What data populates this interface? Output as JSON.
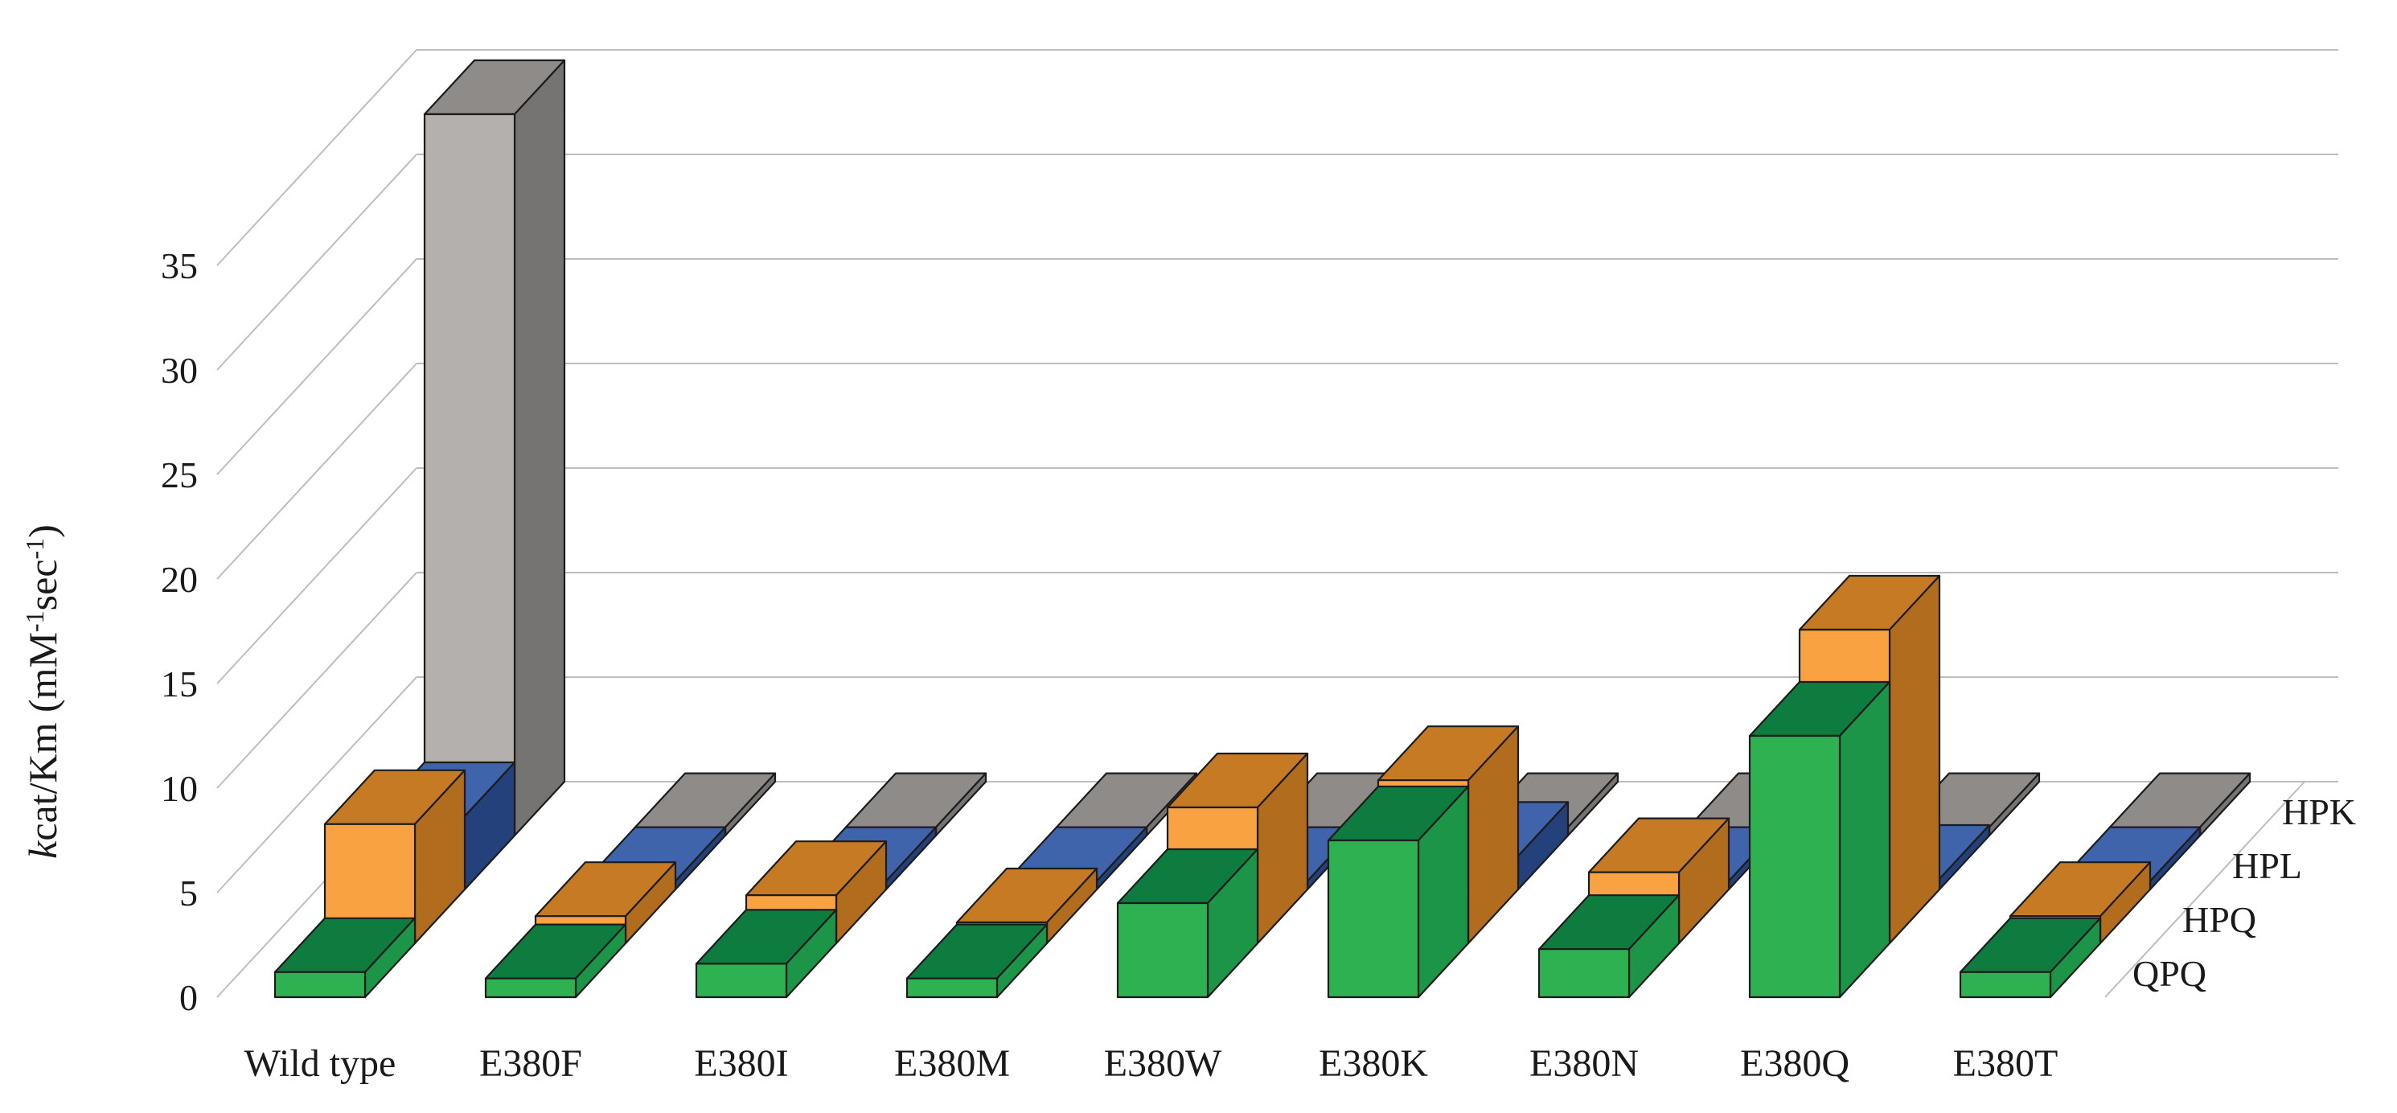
{
  "chart_data": {
    "type": "bar",
    "projection": "3d-oblique-depth-series",
    "title": "",
    "xlabel": "",
    "ylabel": "kcat/Km (mM-1sec-1)",
    "ylabel_parts": [
      {
        "text": "k",
        "italic": true
      },
      {
        "text": "cat/Km (mM"
      },
      {
        "text": "-1",
        "super": true
      },
      {
        "text": "sec"
      },
      {
        "text": "-1",
        "super": true
      },
      {
        "text": ")"
      }
    ],
    "categories": [
      "Wild type",
      "E380F",
      "E380I",
      "E380M",
      "E380W",
      "E380K",
      "E380N",
      "E380Q",
      "E380T"
    ],
    "series": [
      {
        "name": "QPQ",
        "depth_row": 0,
        "values": [
          1.2,
          0.9,
          1.6,
          0.9,
          4.5,
          7.5,
          2.3,
          12.5,
          1.2
        ],
        "colors": {
          "front": "#2eb150",
          "top": "#0e7c3e",
          "side": "#1d9549"
        }
      },
      {
        "name": "HPQ",
        "depth_row": 1,
        "values": [
          5.7,
          1.3,
          2.3,
          1.0,
          6.5,
          7.8,
          3.4,
          15.0,
          1.3
        ],
        "colors": {
          "front": "#f9a242",
          "top": "#c77a24",
          "side": "#b26c1e"
        }
      },
      {
        "name": "HPL",
        "depth_row": 2,
        "values": [
          3.5,
          0.4,
          0.4,
          0.4,
          0.4,
          1.6,
          0.4,
          0.5,
          0.4
        ],
        "colors": {
          "front": "#2e4f91",
          "top": "#3f64ab",
          "side": "#24417b"
        }
      },
      {
        "name": "HPK",
        "depth_row": 3,
        "values": [
          34.5,
          0.4,
          0.4,
          0.4,
          0.4,
          0.4,
          0.4,
          0.4,
          0.4
        ],
        "colors": {
          "front": "#b3b0ad",
          "top": "#8e8b89",
          "side": "#767472"
        }
      }
    ],
    "series_labels_back_to_front": [
      "HPK",
      "HPL",
      "HPQ",
      "QPQ"
    ],
    "yticks": [
      0,
      5,
      10,
      15,
      20,
      25,
      30,
      35
    ],
    "ylim": [
      0,
      40
    ],
    "grid": true,
    "legend_position": "right-of-floor",
    "gridline_color": "#bdbdbd",
    "bar_outline_color": "#1c1c1c",
    "text_color": "#1a1a1a",
    "background_color": "#ffffff"
  }
}
